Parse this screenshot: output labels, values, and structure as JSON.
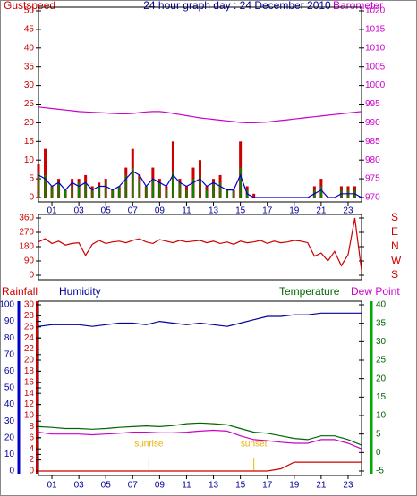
{
  "chart_data": [
    {
      "type": "bar_line",
      "title": "24 hour graph day : 24 December 2010",
      "ylabel": "Gustspeed",
      "y2label": "Barometer",
      "x": [
        0,
        0.5,
        1,
        1.5,
        2,
        2.5,
        3,
        3.5,
        4,
        4.5,
        5,
        5.5,
        6,
        6.5,
        7,
        7.5,
        8,
        8.5,
        9,
        9.5,
        10,
        10.5,
        11,
        11.5,
        12,
        12.5,
        13,
        13.5,
        14,
        14.5,
        15,
        15.5,
        16,
        16.5,
        17,
        17.5,
        18,
        18.5,
        19,
        19.5,
        20,
        20.5,
        21,
        21.5,
        22,
        22.5,
        23,
        23.5,
        24
      ],
      "xlim": [
        0,
        24
      ],
      "xticks": [
        {
          "value": 1,
          "label": "01"
        },
        {
          "value": 3,
          "label": "03"
        },
        {
          "value": 5,
          "label": "05"
        },
        {
          "value": 7,
          "label": "07"
        },
        {
          "value": 9,
          "label": "09"
        },
        {
          "value": 11,
          "label": "11"
        },
        {
          "value": 13,
          "label": "13"
        },
        {
          "value": 15,
          "label": "15"
        },
        {
          "value": 17,
          "label": "17"
        },
        {
          "value": 19,
          "label": "19"
        },
        {
          "value": 21,
          "label": "21"
        },
        {
          "value": 23,
          "label": "23"
        }
      ],
      "ylim": [
        0,
        50
      ],
      "yticks": [
        0,
        5,
        10,
        15,
        20,
        25,
        30,
        35,
        40,
        45,
        50
      ],
      "y2lim": [
        970,
        1020
      ],
      "y2ticks": [
        970,
        975,
        980,
        985,
        990,
        995,
        1000,
        1005,
        1010,
        1015,
        1020
      ],
      "series": [
        {
          "name": "Gustspeed",
          "kind": "bar",
          "color": "#cc0000",
          "values": [
            9,
            13,
            3,
            5,
            2,
            5,
            5,
            6,
            3,
            4,
            5,
            2,
            3,
            8,
            13,
            6,
            3,
            8,
            5,
            3,
            15,
            5,
            3,
            8,
            10,
            3,
            5,
            6,
            2,
            2,
            15,
            3,
            1,
            0,
            0,
            0,
            0,
            0,
            0,
            0,
            0,
            3,
            5,
            0,
            0,
            3,
            3,
            3,
            0
          ]
        },
        {
          "kind": "bar",
          "color": "#008800",
          "values": [
            7,
            6,
            3,
            4,
            2,
            3,
            4,
            4,
            2,
            3,
            4,
            2,
            3,
            6,
            8,
            5,
            3,
            5,
            4,
            2,
            7,
            4,
            2,
            5,
            6,
            2,
            4,
            4,
            2,
            2,
            8,
            2,
            0,
            0,
            0,
            0,
            0,
            0,
            0,
            0,
            0,
            2,
            3,
            0,
            0,
            2,
            2,
            2,
            0
          ]
        },
        {
          "kind": "line",
          "color": "#0000cc",
          "values": [
            6,
            5,
            3,
            4,
            2,
            4,
            3,
            4,
            2,
            3,
            3,
            2,
            3,
            5,
            7,
            6,
            3,
            5,
            4,
            3,
            6,
            4,
            3,
            4,
            5,
            3,
            4,
            3,
            2,
            2,
            6,
            1,
            0,
            0,
            0,
            0,
            0,
            0,
            0,
            0,
            0,
            1,
            2,
            0,
            0,
            1,
            1,
            1,
            0
          ]
        },
        {
          "name": "Barometer",
          "kind": "line",
          "axis": "y2",
          "color": "#cc00cc",
          "values": [
            994.2,
            994.0,
            993.8,
            993.6,
            993.4,
            993.2,
            993.0,
            992.9,
            992.8,
            992.7,
            992.6,
            992.5,
            992.4,
            992.4,
            992.5,
            992.7,
            992.9,
            993.0,
            993.0,
            992.8,
            992.5,
            992.2,
            991.9,
            991.6,
            991.3,
            991.1,
            990.9,
            990.7,
            990.5,
            990.3,
            990.1,
            990.0,
            990.0,
            990.1,
            990.2,
            990.4,
            990.6,
            990.8,
            991.0,
            991.2,
            991.4,
            991.6,
            991.8,
            992.0,
            992.2,
            992.4,
            992.6,
            992.8,
            993.0
          ]
        }
      ]
    },
    {
      "type": "line",
      "x": [
        0,
        0.5,
        1,
        1.5,
        2,
        2.5,
        3,
        3.5,
        4,
        4.5,
        5,
        5.5,
        6,
        6.5,
        7,
        7.5,
        8,
        8.5,
        9,
        9.5,
        10,
        10.5,
        11,
        11.5,
        12,
        12.5,
        13,
        13.5,
        14,
        14.5,
        15,
        15.5,
        16,
        16.5,
        17,
        17.5,
        18,
        18.5,
        19,
        19.5,
        20,
        20.5,
        21,
        21.5,
        22,
        22.5,
        23,
        23.5,
        24
      ],
      "xlim": [
        0,
        24
      ],
      "ylim": [
        0,
        360
      ],
      "yticks": [
        0,
        90,
        180,
        270,
        360
      ],
      "y2lim": [
        0,
        360
      ],
      "y2ticks": [
        {
          "value": 360,
          "label": "S"
        },
        {
          "value": 270,
          "label": "E"
        },
        {
          "value": 180,
          "label": "N"
        },
        {
          "value": 90,
          "label": "W"
        },
        {
          "value": 0,
          "label": "S"
        }
      ],
      "series": [
        {
          "kind": "line",
          "color": "#cc0000",
          "values": [
            210,
            230,
            200,
            215,
            190,
            200,
            205,
            125,
            195,
            220,
            200,
            210,
            215,
            205,
            220,
            230,
            210,
            200,
            225,
            215,
            205,
            220,
            210,
            215,
            220,
            205,
            215,
            200,
            210,
            195,
            215,
            205,
            210,
            220,
            200,
            215,
            205,
            210,
            220,
            215,
            205,
            120,
            140,
            90,
            150,
            60,
            130,
            360,
            30
          ]
        }
      ]
    },
    {
      "type": "line",
      "ylabel": "Rainfall",
      "y3label": "Humidity",
      "y2label": "Temperature",
      "y2label_b": "Dew Point",
      "x": [
        0,
        1,
        2,
        3,
        4,
        5,
        6,
        7,
        8,
        9,
        10,
        11,
        12,
        13,
        14,
        15,
        16,
        17,
        18,
        19,
        20,
        21,
        22,
        23,
        24
      ],
      "xlim": [
        0,
        24
      ],
      "xticks": [
        {
          "value": 1,
          "label": "01"
        },
        {
          "value": 3,
          "label": "03"
        },
        {
          "value": 5,
          "label": "05"
        },
        {
          "value": 7,
          "label": "07"
        },
        {
          "value": 9,
          "label": "09"
        },
        {
          "value": 11,
          "label": "11"
        },
        {
          "value": 13,
          "label": "13"
        },
        {
          "value": 15,
          "label": "15"
        },
        {
          "value": 17,
          "label": "17"
        },
        {
          "value": 19,
          "label": "19"
        },
        {
          "value": 21,
          "label": "21"
        },
        {
          "value": 23,
          "label": "23"
        }
      ],
      "ylim": [
        0,
        30
      ],
      "yticks": [
        0,
        2,
        4,
        6,
        8,
        10,
        12,
        14,
        16,
        18,
        20,
        22,
        24,
        26,
        28,
        30
      ],
      "y3lim": [
        0,
        100
      ],
      "y3ticks": [
        0,
        10,
        20,
        30,
        40,
        50,
        60,
        70,
        80,
        90,
        100
      ],
      "y2lim": [
        -5,
        40
      ],
      "y2ticks": [
        -5,
        0,
        5,
        10,
        15,
        20,
        25,
        30,
        35,
        40
      ],
      "annotations": [
        {
          "text": "sunrise",
          "x": 8.2
        },
        {
          "text": "sunset",
          "x": 16
        }
      ],
      "series": [
        {
          "name": "Rainfall",
          "kind": "line",
          "color": "#cc0000",
          "values": [
            0,
            0,
            0,
            0,
            0,
            0,
            0,
            0,
            0,
            0,
            0,
            0,
            0,
            0,
            0,
            0,
            0,
            0,
            0.4,
            1.6,
            1.6,
            1.6,
            1.6,
            1.6,
            1.6
          ]
        },
        {
          "name": "Humidity",
          "kind": "line",
          "axis": "y3",
          "color": "#000099",
          "values": [
            87,
            88,
            88,
            88,
            87,
            88,
            89,
            89,
            88,
            90,
            89,
            88,
            89,
            88,
            87,
            89,
            91,
            93,
            93,
            94,
            94,
            95,
            95,
            95,
            95
          ]
        },
        {
          "name": "Temperature",
          "kind": "line",
          "axis": "y2",
          "color": "#006600",
          "values": [
            7.0,
            6.8,
            6.5,
            6.5,
            6.3,
            6.5,
            6.8,
            7.0,
            7.2,
            7.0,
            7.3,
            7.8,
            8.0,
            7.8,
            7.5,
            6.5,
            5.5,
            5.2,
            4.5,
            3.8,
            3.5,
            4.5,
            4.5,
            3.5,
            2.0
          ]
        },
        {
          "name": "Dew Point",
          "kind": "line",
          "axis": "y2",
          "color": "#cc00cc",
          "values": [
            5.5,
            5.0,
            5.0,
            5.0,
            4.8,
            5.0,
            5.2,
            5.5,
            5.5,
            5.3,
            5.3,
            5.5,
            5.8,
            6.0,
            5.8,
            4.5,
            3.5,
            3.2,
            2.8,
            2.5,
            2.5,
            3.5,
            3.5,
            2.5,
            1.0
          ]
        }
      ]
    }
  ]
}
